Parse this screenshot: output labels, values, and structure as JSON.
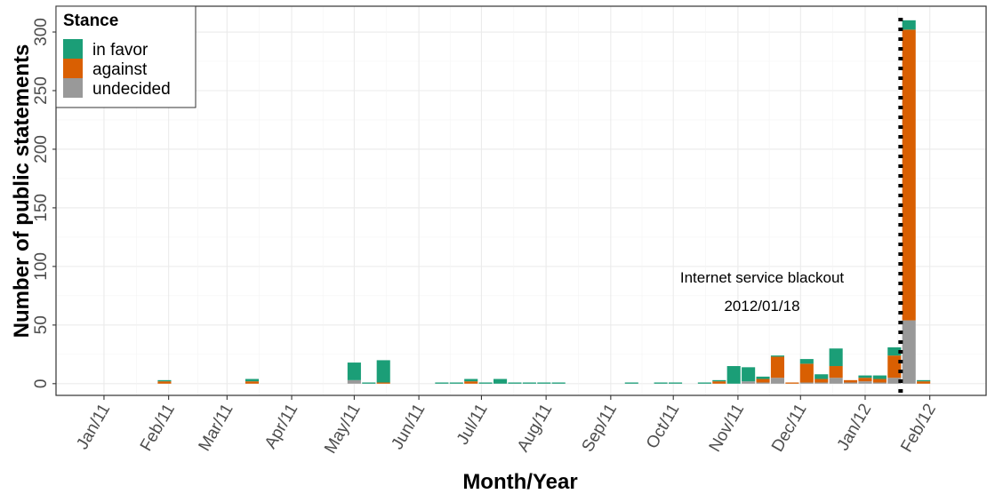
{
  "chart_data": {
    "type": "bar",
    "stacked": true,
    "title": "",
    "xlabel": "Month/Year",
    "ylabel": "Number of public statements",
    "ylim": [
      -10,
      322
    ],
    "yticks": [
      0,
      50,
      100,
      150,
      200,
      250,
      300
    ],
    "xlim": [
      "2010-12-09",
      "2012-02-28"
    ],
    "xticks": [
      {
        "date": "2011-01-01",
        "label": "Jan/11"
      },
      {
        "date": "2011-02-01",
        "label": "Feb/11"
      },
      {
        "date": "2011-03-01",
        "label": "Mar/11"
      },
      {
        "date": "2011-04-01",
        "label": "Apr/11"
      },
      {
        "date": "2011-05-01",
        "label": "May/11"
      },
      {
        "date": "2011-06-01",
        "label": "Jun/11"
      },
      {
        "date": "2011-07-01",
        "label": "Jul/11"
      },
      {
        "date": "2011-08-01",
        "label": "Aug/11"
      },
      {
        "date": "2011-09-01",
        "label": "Sep/11"
      },
      {
        "date": "2011-10-01",
        "label": "Oct/11"
      },
      {
        "date": "2011-11-01",
        "label": "Nov/11"
      },
      {
        "date": "2011-12-01",
        "label": "Dec/11"
      },
      {
        "date": "2012-01-01",
        "label": "Jan/12"
      },
      {
        "date": "2012-02-01",
        "label": "Feb/12"
      }
    ],
    "grid": true,
    "legend": {
      "title": "Stance",
      "position": "top-left",
      "entries": [
        {
          "label": "in favor",
          "color": "#1b9e77"
        },
        {
          "label": "against",
          "color": "#d95f02"
        },
        {
          "label": "undecided",
          "color": "#999999"
        }
      ]
    },
    "series_order": [
      "undecided",
      "against",
      "in favor"
    ],
    "bars": [
      {
        "week": "2011-01-30",
        "undecided": 0,
        "against": 2,
        "in favor": 1
      },
      {
        "week": "2011-03-13",
        "undecided": 0,
        "against": 2,
        "in favor": 2
      },
      {
        "week": "2011-05-01",
        "undecided": 3,
        "against": 0,
        "in favor": 15
      },
      {
        "week": "2011-05-08",
        "undecided": 0,
        "against": 0,
        "in favor": 1
      },
      {
        "week": "2011-05-15",
        "undecided": 0,
        "against": 1,
        "in favor": 19
      },
      {
        "week": "2011-06-12",
        "undecided": 0,
        "against": 0,
        "in favor": 1
      },
      {
        "week": "2011-06-19",
        "undecided": 0,
        "against": 0,
        "in favor": 1
      },
      {
        "week": "2011-06-26",
        "undecided": 0,
        "against": 2,
        "in favor": 2
      },
      {
        "week": "2011-07-03",
        "undecided": 0,
        "against": 0,
        "in favor": 1
      },
      {
        "week": "2011-07-10",
        "undecided": 0,
        "against": 0,
        "in favor": 4
      },
      {
        "week": "2011-07-17",
        "undecided": 0,
        "against": 0,
        "in favor": 1
      },
      {
        "week": "2011-07-24",
        "undecided": 0,
        "against": 0,
        "in favor": 1
      },
      {
        "week": "2011-07-31",
        "undecided": 0,
        "against": 0,
        "in favor": 1
      },
      {
        "week": "2011-08-07",
        "undecided": 0,
        "against": 0,
        "in favor": 1
      },
      {
        "week": "2011-09-11",
        "undecided": 0,
        "against": 0,
        "in favor": 1
      },
      {
        "week": "2011-09-25",
        "undecided": 0,
        "against": 0,
        "in favor": 1
      },
      {
        "week": "2011-10-02",
        "undecided": 0,
        "against": 0,
        "in favor": 1
      },
      {
        "week": "2011-10-16",
        "undecided": 0,
        "against": 0,
        "in favor": 1
      },
      {
        "week": "2011-10-23",
        "undecided": 0,
        "against": 2,
        "in favor": 1
      },
      {
        "week": "2011-10-30",
        "undecided": 0,
        "against": 0,
        "in favor": 15
      },
      {
        "week": "2011-11-06",
        "undecided": 2,
        "against": 0,
        "in favor": 12
      },
      {
        "week": "2011-11-13",
        "undecided": 1,
        "against": 3,
        "in favor": 2
      },
      {
        "week": "2011-11-20",
        "undecided": 5,
        "against": 18,
        "in favor": 1
      },
      {
        "week": "2011-11-27",
        "undecided": 0,
        "against": 1,
        "in favor": 0
      },
      {
        "week": "2011-12-04",
        "undecided": 1,
        "against": 16,
        "in favor": 4
      },
      {
        "week": "2011-12-11",
        "undecided": 1,
        "against": 3,
        "in favor": 4
      },
      {
        "week": "2011-12-18",
        "undecided": 5,
        "against": 10,
        "in favor": 15
      },
      {
        "week": "2011-12-25",
        "undecided": 1,
        "against": 2,
        "in favor": 0
      },
      {
        "week": "2012-01-01",
        "undecided": 2,
        "against": 3,
        "in favor": 2
      },
      {
        "week": "2012-01-08",
        "undecided": 1,
        "against": 3,
        "in favor": 3
      },
      {
        "week": "2012-01-15",
        "undecided": 5,
        "against": 19,
        "in favor": 7
      },
      {
        "week": "2012-01-22",
        "undecided": 54,
        "against": 248,
        "in favor": 8
      },
      {
        "week": "2012-01-29",
        "undecided": 0,
        "against": 2,
        "in favor": 1
      }
    ],
    "vline": {
      "date": "2012-01-18",
      "style": "dotted"
    },
    "annotation": {
      "line1": "Internet service blackout",
      "line2": "2012/01/18"
    }
  }
}
